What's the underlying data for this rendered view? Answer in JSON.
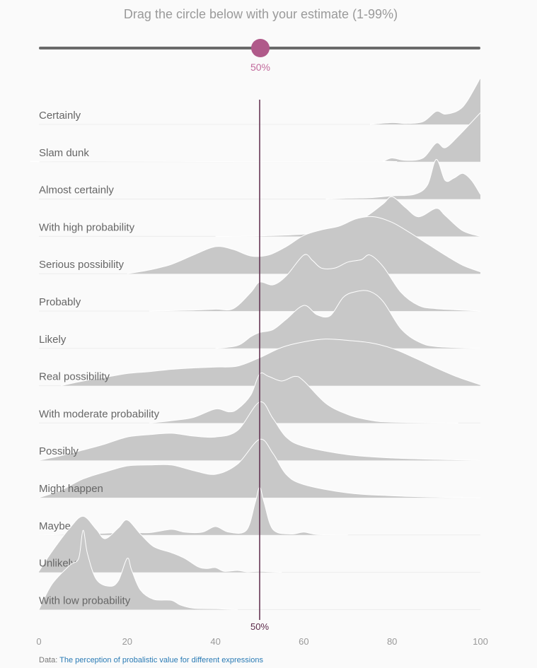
{
  "prompt": "Drag the circle below with your estimate (1-99%)",
  "slider": {
    "value_label": "50%",
    "value": 50,
    "min": 1,
    "max": 99
  },
  "source": {
    "prefix": "Data:",
    "link_text": "The perception of probalistic value for different expressions"
  },
  "colors": {
    "ridge_fill": "#c8c8c8",
    "ridge_stroke": "#ffffff",
    "marker": "#5c2a4a",
    "slider_handle": "#b05a8a",
    "slider_label": "#c26a9c"
  },
  "chart_data": {
    "type": "ridgeline",
    "xlim": [
      0,
      100
    ],
    "x_ticks": [
      0,
      20,
      40,
      60,
      80,
      100
    ],
    "marker": {
      "x": 50,
      "label": "50%"
    },
    "grid": false,
    "series": [
      {
        "name": "Certainly",
        "points": [
          [
            75,
            0
          ],
          [
            80,
            0.04
          ],
          [
            83,
            0.02
          ],
          [
            87,
            0.06
          ],
          [
            90,
            0.28
          ],
          [
            92,
            0.22
          ],
          [
            95,
            0.3
          ],
          [
            97,
            0.5
          ],
          [
            100,
            1.0
          ]
        ]
      },
      {
        "name": "Slam dunk",
        "points": [
          [
            0,
            0
          ],
          [
            5,
            0.01
          ],
          [
            75,
            0
          ],
          [
            78,
            0.02
          ],
          [
            80,
            0.08
          ],
          [
            83,
            0.03
          ],
          [
            87,
            0.08
          ],
          [
            90,
            0.4
          ],
          [
            92,
            0.3
          ],
          [
            95,
            0.55
          ],
          [
            100,
            1.05
          ]
        ]
      },
      {
        "name": "Almost certainly",
        "points": [
          [
            65,
            0
          ],
          [
            70,
            0.02
          ],
          [
            75,
            0.03
          ],
          [
            80,
            0.07
          ],
          [
            85,
            0.1
          ],
          [
            88,
            0.3
          ],
          [
            90,
            0.85
          ],
          [
            92,
            0.4
          ],
          [
            94,
            0.45
          ],
          [
            96,
            0.55
          ],
          [
            98,
            0.4
          ],
          [
            100,
            0.1
          ]
        ]
      },
      {
        "name": "With high probability",
        "points": [
          [
            40,
            0
          ],
          [
            50,
            0.01
          ],
          [
            60,
            0.05
          ],
          [
            66,
            0.14
          ],
          [
            70,
            0.25
          ],
          [
            74,
            0.42
          ],
          [
            78,
            0.7
          ],
          [
            80,
            0.85
          ],
          [
            83,
            0.62
          ],
          [
            86,
            0.42
          ],
          [
            90,
            0.6
          ],
          [
            92,
            0.45
          ],
          [
            96,
            0.12
          ],
          [
            100,
            0
          ]
        ]
      },
      {
        "name": "Serious possibility",
        "points": [
          [
            20,
            0
          ],
          [
            25,
            0.08
          ],
          [
            30,
            0.2
          ],
          [
            35,
            0.4
          ],
          [
            40,
            0.58
          ],
          [
            44,
            0.52
          ],
          [
            48,
            0.38
          ],
          [
            52,
            0.4
          ],
          [
            56,
            0.58
          ],
          [
            60,
            0.82
          ],
          [
            64,
            0.94
          ],
          [
            68,
            1.02
          ],
          [
            72,
            1.18
          ],
          [
            76,
            1.22
          ],
          [
            80,
            1.1
          ],
          [
            84,
            0.88
          ],
          [
            88,
            0.64
          ],
          [
            92,
            0.4
          ],
          [
            96,
            0.18
          ],
          [
            100,
            0.04
          ]
        ]
      },
      {
        "name": "Probably",
        "points": [
          [
            25,
            0
          ],
          [
            35,
            0.02
          ],
          [
            40,
            0.04
          ],
          [
            44,
            0.05
          ],
          [
            48,
            0.4
          ],
          [
            50,
            0.62
          ],
          [
            53,
            0.56
          ],
          [
            56,
            0.75
          ],
          [
            60,
            1.2
          ],
          [
            62,
            1.08
          ],
          [
            64,
            0.92
          ],
          [
            67,
            0.92
          ],
          [
            70,
            1.05
          ],
          [
            73,
            1.1
          ],
          [
            75,
            1.2
          ],
          [
            78,
            0.95
          ],
          [
            82,
            0.4
          ],
          [
            86,
            0.12
          ],
          [
            90,
            0.05
          ],
          [
            100,
            0
          ]
        ]
      },
      {
        "name": "Likely",
        "points": [
          [
            40,
            0
          ],
          [
            45,
            0.06
          ],
          [
            48,
            0.25
          ],
          [
            50,
            0.34
          ],
          [
            53,
            0.4
          ],
          [
            56,
            0.62
          ],
          [
            60,
            0.92
          ],
          [
            63,
            0.72
          ],
          [
            66,
            0.7
          ],
          [
            69,
            1.1
          ],
          [
            72,
            1.22
          ],
          [
            75,
            1.22
          ],
          [
            78,
            1.0
          ],
          [
            82,
            0.42
          ],
          [
            86,
            0.14
          ],
          [
            90,
            0.04
          ],
          [
            100,
            0
          ]
        ]
      },
      {
        "name": "Real possibility",
        "points": [
          [
            5,
            0
          ],
          [
            10,
            0.1
          ],
          [
            15,
            0.18
          ],
          [
            20,
            0.26
          ],
          [
            25,
            0.3
          ],
          [
            30,
            0.35
          ],
          [
            35,
            0.38
          ],
          [
            40,
            0.4
          ],
          [
            45,
            0.42
          ],
          [
            50,
            0.6
          ],
          [
            55,
            0.82
          ],
          [
            60,
            0.94
          ],
          [
            65,
            1.0
          ],
          [
            70,
            0.97
          ],
          [
            75,
            0.92
          ],
          [
            80,
            0.8
          ],
          [
            85,
            0.6
          ],
          [
            90,
            0.38
          ],
          [
            95,
            0.18
          ],
          [
            100,
            0.02
          ]
        ]
      },
      {
        "name": "With moderate probability",
        "points": [
          [
            25,
            0
          ],
          [
            30,
            0.05
          ],
          [
            35,
            0.12
          ],
          [
            40,
            0.3
          ],
          [
            43,
            0.24
          ],
          [
            45,
            0.3
          ],
          [
            48,
            0.6
          ],
          [
            50,
            1.05
          ],
          [
            52,
            1.0
          ],
          [
            55,
            0.9
          ],
          [
            58,
            1.0
          ],
          [
            60,
            0.9
          ],
          [
            65,
            0.42
          ],
          [
            70,
            0.18
          ],
          [
            75,
            0.06
          ],
          [
            80,
            0.02
          ],
          [
            95,
            0
          ]
        ]
      },
      {
        "name": "Possibly",
        "points": [
          [
            0,
            0
          ],
          [
            5,
            0.1
          ],
          [
            10,
            0.22
          ],
          [
            15,
            0.35
          ],
          [
            20,
            0.5
          ],
          [
            25,
            0.55
          ],
          [
            30,
            0.58
          ],
          [
            35,
            0.52
          ],
          [
            40,
            0.5
          ],
          [
            45,
            0.64
          ],
          [
            50,
            1.25
          ],
          [
            53,
            0.9
          ],
          [
            56,
            0.5
          ],
          [
            60,
            0.3
          ],
          [
            70,
            0.12
          ],
          [
            80,
            0.05
          ],
          [
            90,
            0.02
          ],
          [
            100,
            0
          ]
        ]
      },
      {
        "name": "Might happen",
        "points": [
          [
            0,
            0
          ],
          [
            5,
            0.16
          ],
          [
            10,
            0.4
          ],
          [
            15,
            0.55
          ],
          [
            20,
            0.68
          ],
          [
            25,
            0.7
          ],
          [
            30,
            0.7
          ],
          [
            35,
            0.58
          ],
          [
            40,
            0.5
          ],
          [
            45,
            0.72
          ],
          [
            50,
            1.25
          ],
          [
            53,
            0.95
          ],
          [
            56,
            0.5
          ],
          [
            60,
            0.28
          ],
          [
            70,
            0.1
          ],
          [
            80,
            0.04
          ],
          [
            90,
            0.01
          ],
          [
            100,
            0
          ]
        ]
      },
      {
        "name": "Maybe",
        "points": [
          [
            0,
            0
          ],
          [
            5,
            0.01
          ],
          [
            10,
            0.03
          ],
          [
            15,
            0.04
          ],
          [
            20,
            0.06
          ],
          [
            25,
            0.05
          ],
          [
            30,
            0.12
          ],
          [
            33,
            0.06
          ],
          [
            37,
            0.06
          ],
          [
            40,
            0.18
          ],
          [
            43,
            0.06
          ],
          [
            47,
            0.1
          ],
          [
            49,
            0.7
          ],
          [
            50,
            1.02
          ],
          [
            51,
            0.7
          ],
          [
            53,
            0.12
          ],
          [
            57,
            0.02
          ],
          [
            60,
            0.06
          ],
          [
            63,
            0.01
          ],
          [
            70,
            0
          ]
        ]
      },
      {
        "name": "Unlikely",
        "points": [
          [
            0,
            0.02
          ],
          [
            3,
            0.45
          ],
          [
            7,
            0.95
          ],
          [
            10,
            1.2
          ],
          [
            13,
            0.92
          ],
          [
            15,
            0.72
          ],
          [
            18,
            0.95
          ],
          [
            20,
            1.12
          ],
          [
            23,
            0.82
          ],
          [
            26,
            0.55
          ],
          [
            30,
            0.42
          ],
          [
            33,
            0.3
          ],
          [
            36,
            0.12
          ],
          [
            38,
            0.08
          ],
          [
            40,
            0.1
          ],
          [
            42,
            0.02
          ],
          [
            45,
            0.04
          ],
          [
            47,
            0.01
          ],
          [
            50,
            0.02
          ],
          [
            55,
            0
          ]
        ]
      },
      {
        "name": "With low probability",
        "points": [
          [
            0,
            0
          ],
          [
            3,
            0.55
          ],
          [
            7,
            0.95
          ],
          [
            9,
            1.1
          ],
          [
            10,
            1.7
          ],
          [
            11,
            1.2
          ],
          [
            13,
            0.65
          ],
          [
            16,
            0.5
          ],
          [
            18,
            0.62
          ],
          [
            20,
            1.1
          ],
          [
            21,
            0.85
          ],
          [
            23,
            0.42
          ],
          [
            26,
            0.22
          ],
          [
            30,
            0.2
          ],
          [
            32,
            0.1
          ],
          [
            35,
            0.03
          ],
          [
            40,
            0.02
          ],
          [
            45,
            0
          ]
        ]
      }
    ]
  }
}
